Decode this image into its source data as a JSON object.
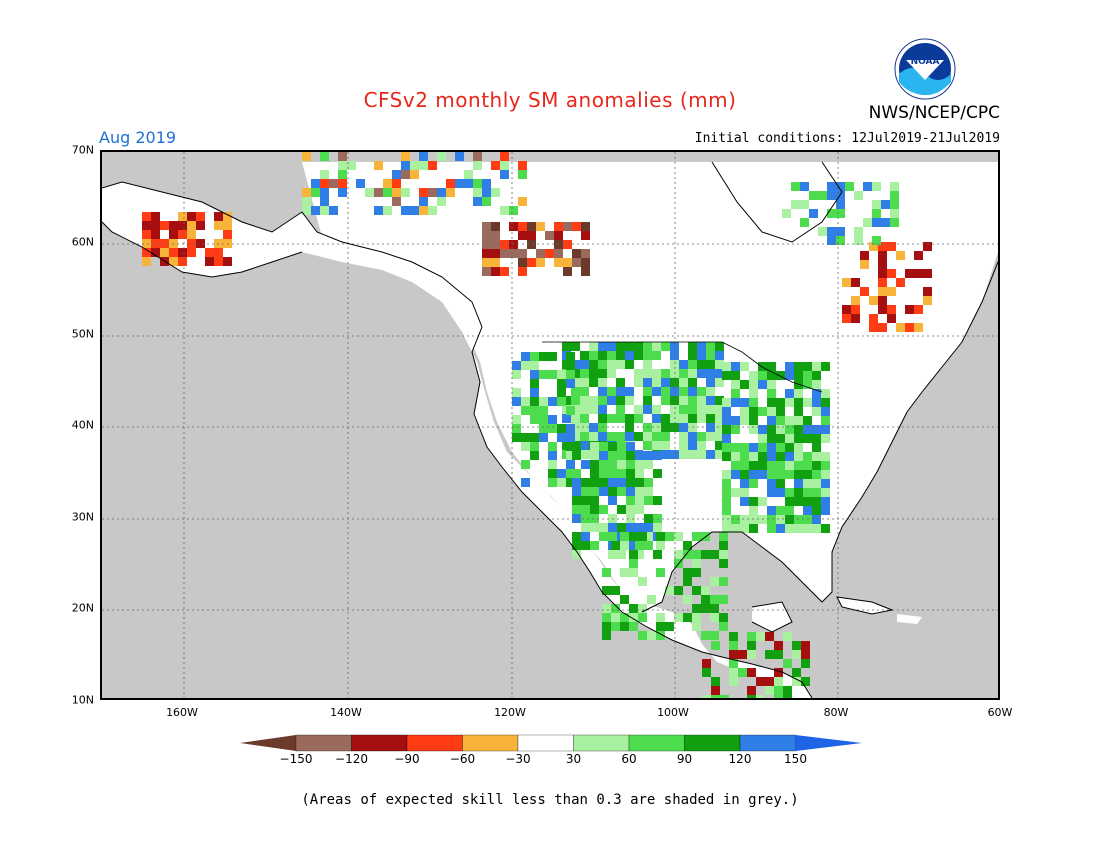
{
  "title": "CFSv2 monthly SM anomalies (mm)",
  "agency": "NWS/NCEP/CPC",
  "logo_text": "NOAA",
  "valid_month": "Aug 2019",
  "initial_conditions": "Initial conditions: 12Jul2019-21Jul2019",
  "lat_labels": [
    "70N",
    "60N",
    "50N",
    "40N",
    "30N",
    "20N",
    "10N"
  ],
  "lon_labels": [
    "160W",
    "140W",
    "120W",
    "100W",
    "80W",
    "60W"
  ],
  "colorbar": {
    "ticks": [
      "−150",
      "−120",
      "−90",
      "−60",
      "−30",
      "30",
      "60",
      "90",
      "120",
      "150"
    ],
    "colors": [
      "#6b3a2a",
      "#9a6b5c",
      "#a50f0f",
      "#ff3c14",
      "#f7b33a",
      "#ffffff",
      "#a9f0a0",
      "#4ddc4d",
      "#10a010",
      "#2f7fe6",
      "#1e64e6"
    ]
  },
  "note": "(Areas of expected skill less than 0.3 are shaded in grey.)",
  "map_colors": {
    "ocean": "#c8c8c8",
    "land": "#ffffff",
    "grid": "#666666"
  }
}
